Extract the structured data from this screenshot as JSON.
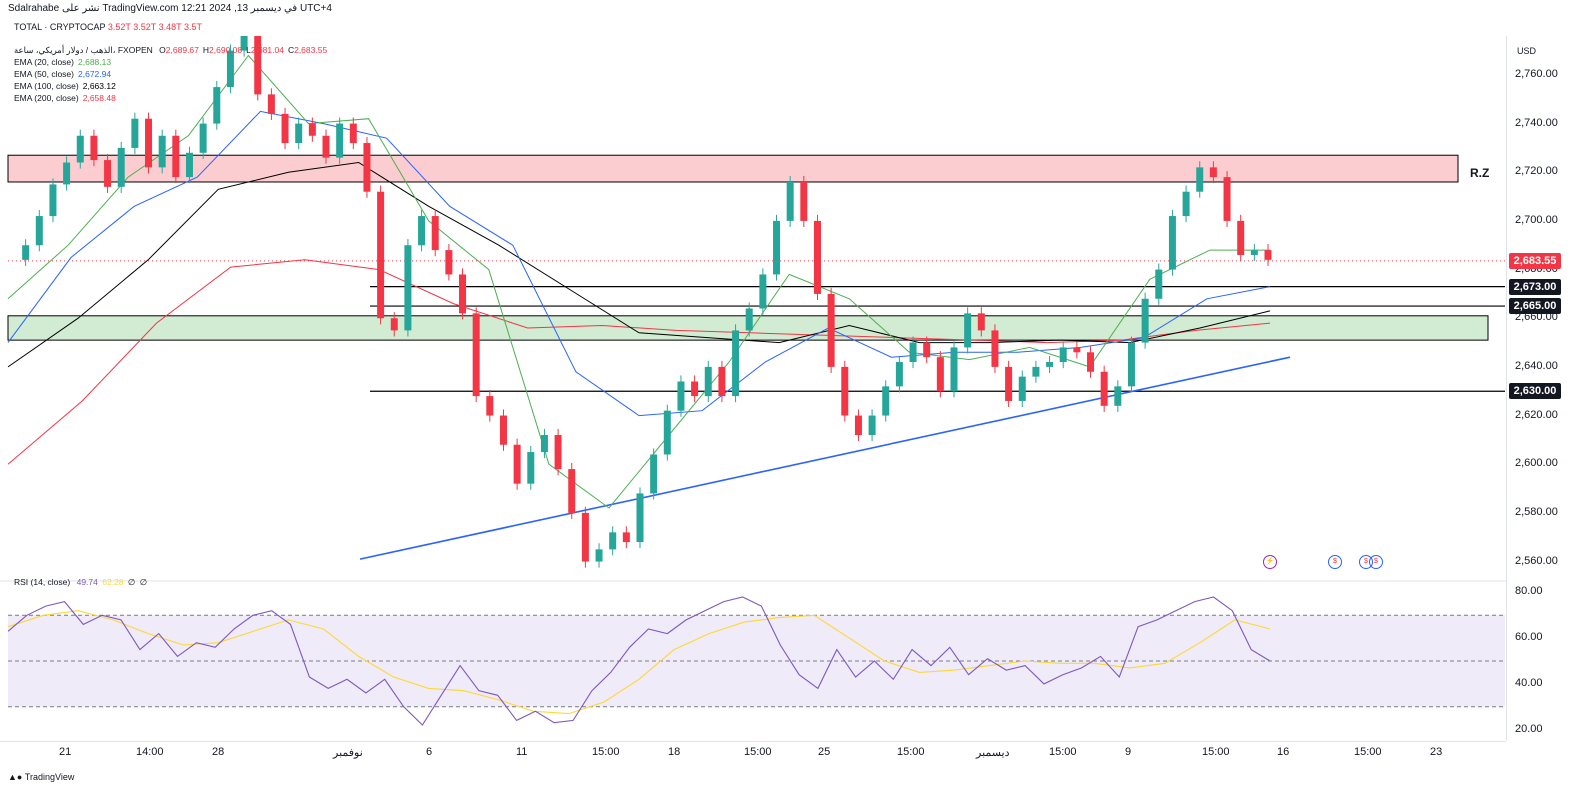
{
  "topbar": {
    "publisher": "Sdalrahabe نشر على TradingView.com في ديسمبر 13, 2024 12:21 UTC+4",
    "ticker": "TOTAL · CRYPTOCAP",
    "ticker_values": [
      "3.52T",
      "3.52T",
      "3.48T",
      "3.5T"
    ]
  },
  "legend": {
    "symbol": "الذهب / دولار أمريكي، ساعة، FXOPEN",
    "ohlc": [
      {
        "k": "O",
        "v": "2,689.67"
      },
      {
        "k": "H",
        "v": "2,690.08"
      },
      {
        "k": "L",
        "v": "2,681.04"
      },
      {
        "k": "C",
        "v": "2,683.55"
      }
    ],
    "emas": [
      {
        "label": "EMA (20, close)",
        "value": "2,688.13",
        "color": "#4caf50"
      },
      {
        "label": "EMA (50, close)",
        "value": "2,672.94",
        "color": "#2962ff"
      },
      {
        "label": "EMA (100, close)",
        "value": "2,663.12",
        "color": "#000000"
      },
      {
        "label": "EMA (200, close)",
        "value": "2,658.48",
        "color": "#f23645"
      }
    ]
  },
  "currency": "USD",
  "zone_label": "R.Z",
  "rsi_legend": {
    "label": "RSI (14, close)",
    "rsi": "49.74",
    "ma": "62.28",
    "extra": [
      "∅",
      "∅"
    ]
  },
  "footer": "TradingView",
  "colors": {
    "up": "#26a69a",
    "down": "#f23645",
    "ema20": "#4caf50",
    "ema50": "#2962ff",
    "ema100": "#000000",
    "ema200": "#f23645",
    "trend": "#2962ff",
    "rsi": "#7e57c2",
    "rsima": "#fdd835"
  },
  "chart_data": [
    {
      "type": "candlestick",
      "title": "الذهب / دولار أمريكي، ساعة، FXOPEN",
      "ylabel": "USD",
      "ylim": [
        2552,
        2776
      ],
      "y_ticks": [
        "2,560.00",
        "2,580.00",
        "2,600.00",
        "2,620.00",
        "2,640.00",
        "2,660.00",
        "2,680.00",
        "2,700.00",
        "2,720.00",
        "2,740.00",
        "2,760.00"
      ],
      "x_ticks": [
        "21",
        "14:00",
        "28",
        "نوفمبر",
        "6",
        "11",
        "15:00",
        "18",
        "15:00",
        "25",
        "15:00",
        "ديسمبر",
        "15:00",
        "9",
        "15:00",
        "16",
        "15:00",
        "23"
      ],
      "last_price": "2,683.55",
      "levels": [
        {
          "price": 2673,
          "label": "2,673.00"
        },
        {
          "price": 2665,
          "label": "2,665.00"
        },
        {
          "price": 2630,
          "label": "2,630.00"
        }
      ],
      "zones": [
        {
          "name": "resistance",
          "from": 2716,
          "to": 2727,
          "label": "R.Z"
        },
        {
          "name": "support",
          "from": 2651,
          "to": 2661
        }
      ],
      "close_path": [
        2684,
        2690,
        2702,
        2715,
        2724,
        2735,
        2725,
        2714,
        2730,
        2742,
        2722,
        2735,
        2718,
        2728,
        2740,
        2755,
        2770,
        2782,
        2752,
        2744,
        2732,
        2740,
        2735,
        2726,
        2740,
        2732,
        2712,
        2660,
        2655,
        2690,
        2702,
        2688,
        2678,
        2662,
        2628,
        2620,
        2608,
        2592,
        2605,
        2612,
        2598,
        2580,
        2560,
        2565,
        2572,
        2568,
        2588,
        2604,
        2622,
        2634,
        2628,
        2640,
        2628,
        2655,
        2664,
        2678,
        2700,
        2716,
        2700,
        2670,
        2640,
        2620,
        2612,
        2620,
        2632,
        2642,
        2650,
        2644,
        2630,
        2648,
        2662,
        2655,
        2640,
        2626,
        2636,
        2640,
        2642,
        2648,
        2646,
        2638,
        2624,
        2632,
        2650,
        2668,
        2680,
        2702,
        2712,
        2722,
        2718,
        2700,
        2686,
        2688,
        2684
      ],
      "ema": {
        "ema20": [
          2668,
          2690,
          2718,
          2735,
          2768,
          2740,
          2742,
          2700,
          2680,
          2600,
          2582,
          2612,
          2642,
          2678,
          2668,
          2646,
          2643,
          2648,
          2640,
          2676,
          2688,
          2688
        ],
        "ema50": [
          2650,
          2685,
          2706,
          2718,
          2745,
          2740,
          2734,
          2706,
          2690,
          2638,
          2620,
          2622,
          2642,
          2656,
          2644,
          2646,
          2646,
          2648,
          2652,
          2668,
          2673
        ],
        "ema100": [
          2640,
          2660,
          2684,
          2713,
          2720,
          2724,
          2706,
          2690,
          2672,
          2654,
          2652,
          2650,
          2657,
          2650,
          2650,
          2651,
          2650,
          2656,
          2663
        ],
        "ema200": [
          2600,
          2626,
          2658,
          2681,
          2684,
          2680,
          2666,
          2656,
          2657,
          2655,
          2654,
          2653,
          2652,
          2651,
          2650,
          2651,
          2655,
          2658
        ]
      },
      "trendline": [
        {
          "y": 2561
        },
        {
          "y": 2644
        }
      ]
    },
    {
      "type": "line",
      "title": "RSI (14, close)",
      "ylim": [
        15,
        85
      ],
      "y_ticks": [
        "20.00",
        "40.00",
        "60.00",
        "80.00"
      ],
      "bands": {
        "upper": 70,
        "middle": 50,
        "lower": 30
      },
      "series": [
        {
          "name": "RSI",
          "values": [
            63,
            70,
            74,
            76,
            66,
            70,
            68,
            55,
            62,
            52,
            58,
            56,
            64,
            70,
            72,
            66,
            43,
            38,
            42,
            36,
            42,
            30,
            22,
            35,
            48,
            37,
            35,
            24,
            28,
            23,
            24,
            37,
            45,
            56,
            64,
            62,
            68,
            72,
            76,
            78,
            74,
            57,
            44,
            38,
            55,
            43,
            50,
            42,
            55,
            48,
            56,
            44,
            51,
            46,
            48,
            40,
            44,
            47,
            52,
            43,
            65,
            68,
            72,
            76,
            78,
            72,
            55,
            50
          ]
        },
        {
          "name": "RSI MA",
          "values": [
            65,
            70,
            72,
            68,
            62,
            57,
            58,
            63,
            68,
            64,
            52,
            43,
            38,
            37,
            33,
            28,
            27,
            32,
            42,
            55,
            62,
            67,
            69,
            70,
            60,
            50,
            45,
            46,
            48,
            50,
            49,
            49,
            47,
            49,
            58,
            68,
            64
          ]
        }
      ]
    }
  ]
}
